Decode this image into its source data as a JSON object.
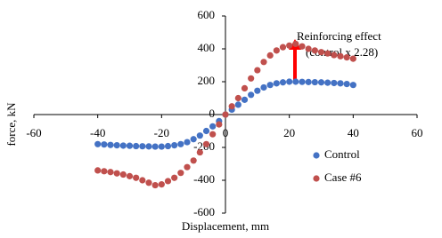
{
  "chart_data": {
    "type": "scatter",
    "x_label": "Displacement,  mm",
    "y_label": "force, kN",
    "annotation": [
      "Reinforcing effect",
      "(control x 2.28)"
    ],
    "x": [
      -40,
      -38,
      -36,
      -34,
      -32,
      -30,
      -28,
      -26,
      -24,
      -22,
      -20,
      -18,
      -16,
      -14,
      -12,
      -10,
      -8,
      -6,
      -4,
      -2,
      0,
      2,
      4,
      6,
      8,
      10,
      12,
      14,
      16,
      18,
      20,
      22,
      24,
      26,
      28,
      30,
      32,
      34,
      36,
      38,
      40
    ],
    "series": [
      {
        "name": "Control",
        "color": "#4472c4",
        "values": [
          -180,
          -182,
          -185,
          -187,
          -189,
          -190,
          -192,
          -193,
          -194,
          -195,
          -195,
          -192,
          -187,
          -180,
          -168,
          -150,
          -128,
          -100,
          -72,
          -40,
          0,
          30,
          60,
          90,
          120,
          145,
          165,
          180,
          190,
          196,
          200,
          200,
          199,
          198,
          197,
          196,
          194,
          192,
          190,
          186,
          180
        ]
      },
      {
        "name": "Case #6",
        "color": "#c0504d",
        "values": [
          -340,
          -345,
          -350,
          -358,
          -365,
          -375,
          -385,
          -400,
          -415,
          -430,
          -425,
          -405,
          -385,
          -355,
          -320,
          -280,
          -230,
          -180,
          -120,
          -60,
          0,
          50,
          100,
          160,
          220,
          270,
          320,
          360,
          390,
          410,
          420,
          430,
          415,
          400,
          390,
          380,
          372,
          362,
          355,
          348,
          340
        ]
      }
    ],
    "xlim": [
      -60,
      60
    ],
    "xticks": [
      -60,
      -40,
      -20,
      0,
      20,
      40,
      60
    ],
    "ylim": [
      -600,
      600
    ],
    "yticks": [
      600,
      400,
      200,
      0,
      -200,
      -400,
      -600
    ],
    "legend": "lower right"
  }
}
